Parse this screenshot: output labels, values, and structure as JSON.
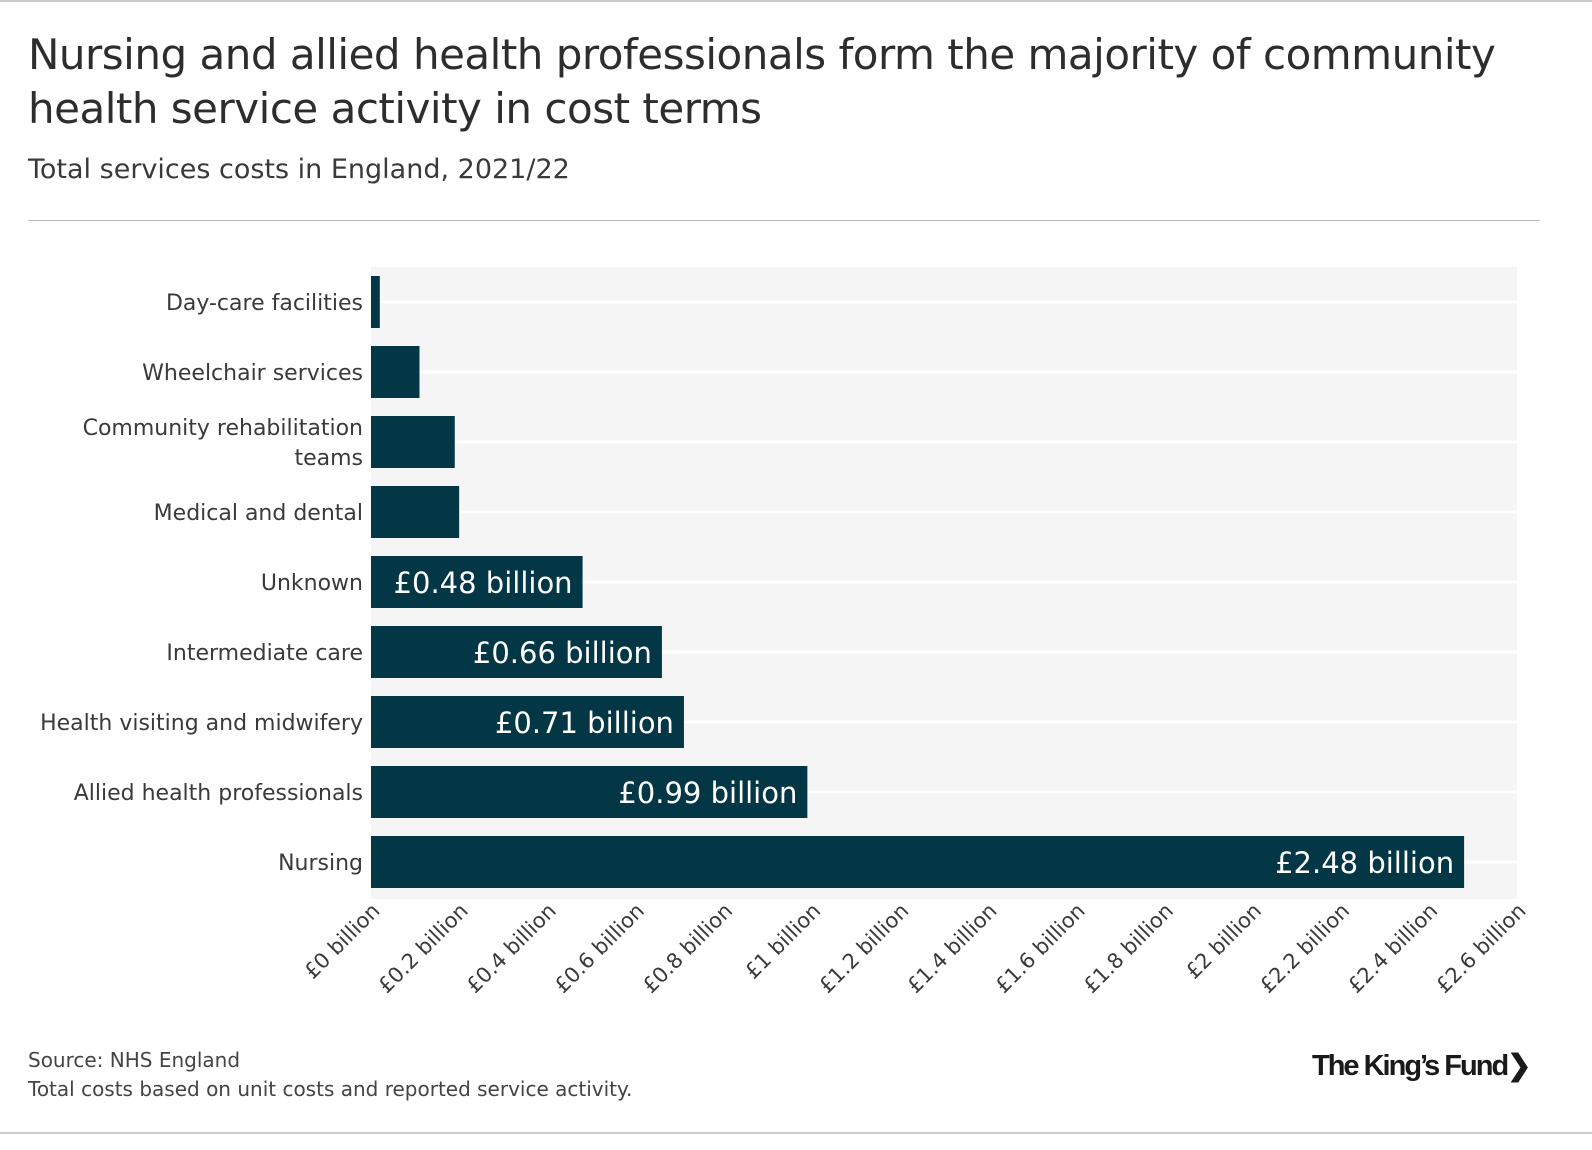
{
  "title": "Nursing and allied health professionals form the majority of community health service activity in cost terms",
  "subtitle": "Total services costs in England, 2021/22",
  "footer": {
    "source": "Source: NHS England",
    "note": "Total costs based on unit costs and reported service activity."
  },
  "logo": "The King's Fund",
  "colors": {
    "bar": "#033745",
    "plot_bg": "#f5f5f5",
    "label_inside": "#ffffff"
  },
  "chart_data": {
    "type": "bar",
    "orientation": "horizontal",
    "categories": [
      "Day-care facilities",
      "Wheelchair services",
      "Community rehabilitation teams",
      "Medical and dental",
      "Unknown",
      "Intermediate care",
      "Health visiting and midwifery",
      "Allied health professionals",
      "Nursing"
    ],
    "category_lines": [
      [
        "Day-care facilities"
      ],
      [
        "Wheelchair services"
      ],
      [
        "Community rehabilitation",
        "teams"
      ],
      [
        "Medical and dental"
      ],
      [
        "Unknown"
      ],
      [
        "Intermediate care"
      ],
      [
        "Health visiting and midwifery"
      ],
      [
        "Allied health professionals"
      ],
      [
        "Nursing"
      ]
    ],
    "values": [
      0.02,
      0.11,
      0.19,
      0.2,
      0.48,
      0.66,
      0.71,
      0.99,
      2.48
    ],
    "data_labels": [
      "",
      "",
      "",
      "",
      "£0.48 billion",
      "£0.66 billion",
      "£0.71 billion",
      "£0.99 billion",
      "£2.48 billion"
    ],
    "xlim": [
      0,
      2.6
    ],
    "x_ticks": [
      0,
      0.2,
      0.4,
      0.6,
      0.8,
      1,
      1.2,
      1.4,
      1.6,
      1.8,
      2,
      2.2,
      2.4,
      2.6
    ],
    "x_tick_labels": [
      "£0 billion",
      "£0.2 billion",
      "£0.4 billion",
      "£0.6 billion",
      "£0.8 billion",
      "£1 billion",
      "£1.2 billion",
      "£1.4 billion",
      "£1.6 billion",
      "£1.8 billion",
      "£2 billion",
      "£2.2 billion",
      "£2.4 billion",
      "£2.6 billion"
    ],
    "xlabel": "",
    "ylabel": "",
    "grid": false,
    "legend": "none"
  }
}
